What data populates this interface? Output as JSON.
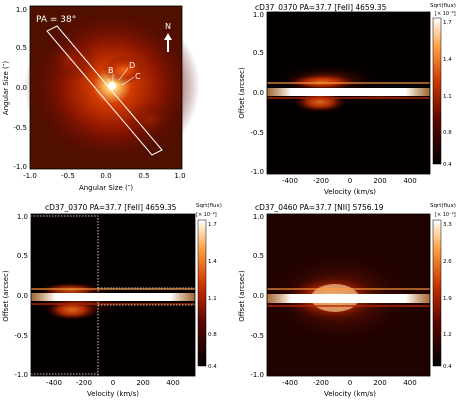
{
  "panels": {
    "tl": {
      "xlabel": "Angular Size (″)",
      "ylabel": "Angular Size (″)",
      "x_ticks": [
        "-1.0",
        "-0.5",
        "0.0",
        "0.5",
        "1.0"
      ],
      "y_ticks": [
        "1.0",
        "0.5",
        "0.0",
        "-0.5",
        "-1.0"
      ],
      "pa_label": "PA = 38°",
      "north_label": "N",
      "markers": {
        "b": "B",
        "c": "C",
        "d": "D"
      }
    },
    "tr": {
      "title": "cD37_0370 PA=37.7 [FeII] 4659.35",
      "xlabel": "Velocity (km/s)",
      "ylabel": "Offset (arcsec)",
      "x_ticks": [
        "-400",
        "-200",
        "0",
        "200",
        "400"
      ],
      "y_ticks": [
        "1.0",
        "0.5",
        "0.0",
        "-0.5",
        "-1.0"
      ],
      "cbar_label": "Sqrt(flux)",
      "cbar_exp": "[× 10⁻⁶]",
      "cbar_ticks": [
        "1.7",
        "1.4",
        "1.1",
        "0.8",
        "0.4"
      ]
    },
    "bl": {
      "title": "cD37_0370 PA=37.7 [FeII] 4659.35",
      "xlabel": "Velocity (km/s)",
      "ylabel": "Offset (arcsec)",
      "x_ticks": [
        "-400",
        "-200",
        "0",
        "200",
        "400"
      ],
      "y_ticks": [
        "1.0",
        "0.5",
        "0.0",
        "-0.5",
        "-1.0"
      ],
      "cbar_label": "Sqrt(flux)",
      "cbar_exp": "[× 10⁻⁶]",
      "cbar_ticks": [
        "1.7",
        "1.4",
        "1.1",
        "0.8",
        "0.4"
      ]
    },
    "br": {
      "title": "cD37_0460 PA=37.7 [NII] 5756.19",
      "xlabel": "Velocity (km/s)",
      "ylabel": "Offset (arcsec)",
      "x_ticks": [
        "-400",
        "-200",
        "0",
        "200",
        "400"
      ],
      "y_ticks": [
        "1.0",
        "0.5",
        "0.0",
        "-0.5",
        "-1.0"
      ],
      "cbar_label": "Sqrt(flux)",
      "cbar_exp": "[× 10⁻⁶]",
      "cbar_ticks": [
        "3.3",
        "2.6",
        "1.9",
        "1.2",
        "0.4"
      ]
    }
  }
}
